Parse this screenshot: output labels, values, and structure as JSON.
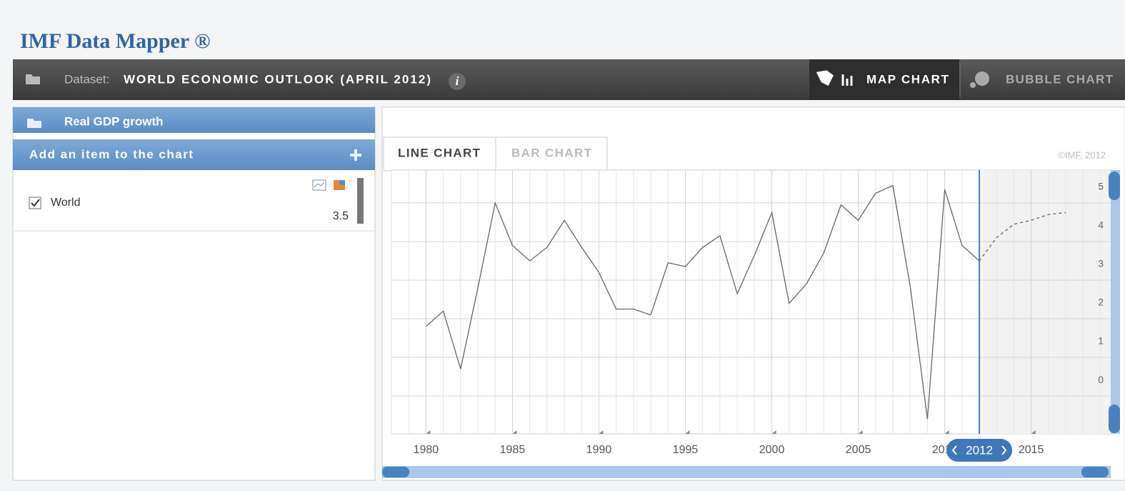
{
  "header": {
    "title": "IMF Data Mapper ®",
    "dataset_label": "Dataset:",
    "dataset": "WORLD ECONOMIC OUTLOOK (APRIL 2012)",
    "info": "i"
  },
  "nav": [
    "MAP CHART",
    "BUBBLE CHART"
  ],
  "sidebar": {
    "indicator": "Real GDP growth",
    "add_item": "Add an item to the chart",
    "items": [
      {
        "label": "World"
      }
    ]
  },
  "tabs": [
    "LINE CHART",
    "BAR CHART"
  ],
  "copyright": "©IMF, 2012",
  "chart_data": {
    "type": "line",
    "x": [
      1980,
      1981,
      1982,
      1983,
      1984,
      1985,
      1986,
      1987,
      1988,
      1989,
      1990,
      1991,
      1992,
      1993,
      1994,
      1995,
      1996,
      1997,
      1998,
      1999,
      2000,
      2001,
      2002,
      2003,
      2004,
      2005,
      2006,
      2007,
      2008,
      2009,
      2010,
      2011,
      2012,
      2013,
      2014,
      2015,
      2016,
      2017
    ],
    "series": [
      {
        "name": "World",
        "color": "#666666",
        "values": [
          1.8,
          2.2,
          0.7,
          2.8,
          5.0,
          3.9,
          3.5,
          3.85,
          4.55,
          3.85,
          3.2,
          2.25,
          2.25,
          2.1,
          3.45,
          3.35,
          3.85,
          4.15,
          2.65,
          3.65,
          4.75,
          2.4,
          2.9,
          3.7,
          4.95,
          4.55,
          5.25,
          5.45,
          2.85,
          -0.6,
          5.35,
          3.9,
          3.5,
          4.1,
          4.45,
          4.55,
          4.7,
          4.75
        ]
      }
    ],
    "selected_year": 2012,
    "xlim": [
      1978,
      2019.6
    ],
    "xticks": [
      1980,
      1985,
      1990,
      1995,
      2000,
      2005,
      2010,
      2015
    ],
    "ylim": [
      -0.98,
      5.85
    ],
    "yticks": [
      0,
      1,
      2,
      3,
      4,
      5
    ],
    "grid": true
  }
}
